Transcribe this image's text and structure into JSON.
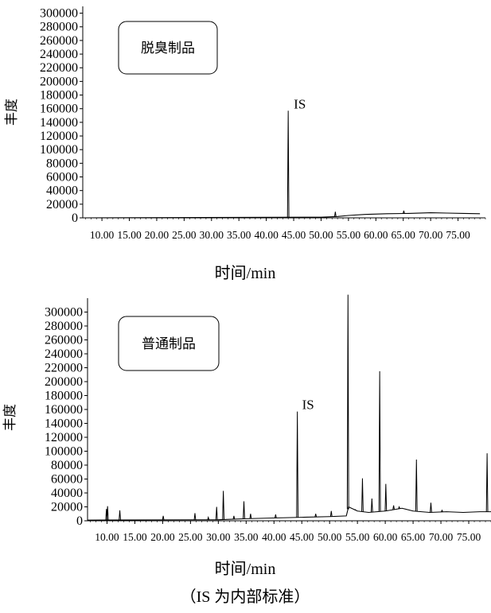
{
  "figure": {
    "caption": "（IS 为内部标准）"
  },
  "chart_data": [
    {
      "type": "line",
      "panel_label": "脱臭制品",
      "xlabel": "时间/min",
      "ylabel": "丰度",
      "xlim": [
        6.5,
        80.0
      ],
      "ylim": [
        0,
        310000
      ],
      "x_ticks": [
        "10.00",
        "15.00",
        "20.00",
        "25.00",
        "30.00",
        "35.00",
        "40.00",
        "45.00",
        "50.00",
        "55.00",
        "60.00",
        "65.00",
        "70.00",
        "75.00"
      ],
      "y_ticks": [
        0,
        20000,
        40000,
        60000,
        80000,
        100000,
        120000,
        140000,
        160000,
        180000,
        200000,
        220000,
        240000,
        260000,
        280000,
        300000
      ],
      "annotations": [
        {
          "text": "IS",
          "x": 44.0,
          "y": 157000
        }
      ],
      "baseline": [
        [
          6.5,
          0
        ],
        [
          50.0,
          1000
        ],
        [
          53.0,
          2000
        ],
        [
          55.0,
          3500
        ],
        [
          58.0,
          5000
        ],
        [
          62.0,
          6000
        ],
        [
          66.0,
          6500
        ],
        [
          70.0,
          7500
        ],
        [
          73.0,
          7000
        ],
        [
          76.0,
          6500
        ],
        [
          79.0,
          6000
        ]
      ],
      "peaks": [
        {
          "x": 44.0,
          "y": 157000
        },
        {
          "x": 52.6,
          "y": 9000
        },
        {
          "x": 65.1,
          "y": 10500
        }
      ]
    },
    {
      "type": "line",
      "panel_label": "普通制品",
      "xlabel": "时间/min",
      "ylabel": "丰度",
      "xlim": [
        6.5,
        79.0
      ],
      "ylim": [
        0,
        320000
      ],
      "x_ticks": [
        "10.00",
        "15.00",
        "20.00",
        "25.00",
        "30.00",
        "35.00",
        "40.00",
        "45.00",
        "50.00",
        "55.00",
        "60.00",
        "65.00",
        "70.00",
        "75.00"
      ],
      "y_ticks": [
        0,
        20000,
        40000,
        60000,
        80000,
        100000,
        120000,
        140000,
        160000,
        180000,
        200000,
        220000,
        240000,
        260000,
        280000,
        300000
      ],
      "annotations": [
        {
          "text": "IS",
          "x": 44.2,
          "y": 157000
        }
      ],
      "baseline": [
        [
          6.5,
          1000
        ],
        [
          30.0,
          1500
        ],
        [
          35.0,
          3000
        ],
        [
          40.0,
          4000
        ],
        [
          45.0,
          5000
        ],
        [
          50.0,
          6000
        ],
        [
          53.0,
          7000
        ],
        [
          53.4,
          20000
        ],
        [
          55.0,
          14000
        ],
        [
          57.0,
          12000
        ],
        [
          60.0,
          14000
        ],
        [
          63.0,
          18000
        ],
        [
          65.0,
          14000
        ],
        [
          68.0,
          12000
        ],
        [
          71.0,
          13000
        ],
        [
          74.0,
          12000
        ],
        [
          77.0,
          13000
        ],
        [
          79.0,
          13000
        ]
      ],
      "peaks": [
        {
          "x": 9.9,
          "y": 17000
        },
        {
          "x": 10.1,
          "y": 21000
        },
        {
          "x": 12.3,
          "y": 15000
        },
        {
          "x": 20.1,
          "y": 7000
        },
        {
          "x": 25.8,
          "y": 11000
        },
        {
          "x": 28.2,
          "y": 5000
        },
        {
          "x": 29.7,
          "y": 20000
        },
        {
          "x": 30.9,
          "y": 43000
        },
        {
          "x": 32.8,
          "y": 7000
        },
        {
          "x": 34.6,
          "y": 28000
        },
        {
          "x": 35.8,
          "y": 10000
        },
        {
          "x": 40.3,
          "y": 9000
        },
        {
          "x": 44.2,
          "y": 157000
        },
        {
          "x": 47.5,
          "y": 10000
        },
        {
          "x": 50.3,
          "y": 14000
        },
        {
          "x": 53.3,
          "y": 325000
        },
        {
          "x": 54.6,
          "y": 16000
        },
        {
          "x": 55.9,
          "y": 61000
        },
        {
          "x": 57.6,
          "y": 32000
        },
        {
          "x": 59.0,
          "y": 215000
        },
        {
          "x": 60.1,
          "y": 53000
        },
        {
          "x": 61.5,
          "y": 22000
        },
        {
          "x": 62.5,
          "y": 20000
        },
        {
          "x": 65.6,
          "y": 88000
        },
        {
          "x": 68.2,
          "y": 26000
        },
        {
          "x": 70.2,
          "y": 15000
        },
        {
          "x": 78.3,
          "y": 97000
        }
      ]
    }
  ]
}
